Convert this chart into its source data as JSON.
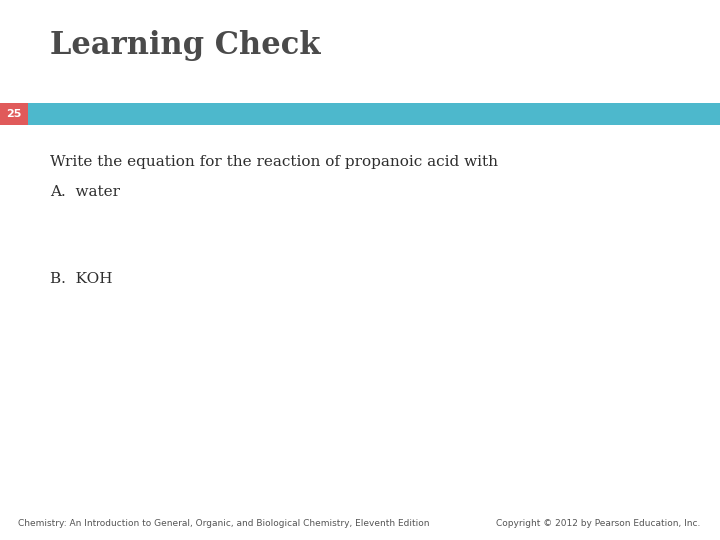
{
  "title": "Learning Check",
  "title_color": "#4a4a4a",
  "title_fontsize": 22,
  "badge_number": "25",
  "badge_bg_color": "#e05a5a",
  "badge_text_color": "#ffffff",
  "banner_color": "#4db8cc",
  "line1": "Write the equation for the reaction of propanoic acid with",
  "line2": "A.  water",
  "line3": "B.  KOH",
  "content_color": "#2e2e2e",
  "content_fontsize": 11,
  "footer_left": "Chemistry: An Introduction to General, Organic, and Biological Chemistry, Eleventh Edition",
  "footer_right": "Copyright © 2012 by Pearson Education, Inc.",
  "footer_color": "#555555",
  "footer_fontsize": 6.5,
  "bg_color": "#ffffff"
}
